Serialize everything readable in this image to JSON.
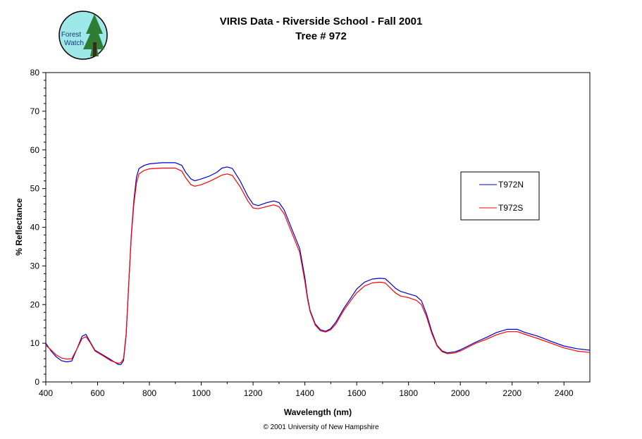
{
  "chart_data": {
    "type": "line",
    "title": "VIRIS Data - Riverside School - Fall 2001",
    "subtitle": "Tree # 972",
    "xlabel": "Wavelength (nm)",
    "ylabel": "% Reflectance",
    "xlim": [
      400,
      2500
    ],
    "ylim": [
      0,
      80
    ],
    "xticks": [
      400,
      600,
      800,
      1000,
      1200,
      1400,
      1600,
      1800,
      2000,
      2200,
      2400
    ],
    "yticks": [
      0,
      10,
      20,
      30,
      40,
      50,
      60,
      70,
      80
    ],
    "grid": false,
    "legend_position": "right",
    "series": [
      {
        "name": "T972N",
        "color": "#0000cc",
        "points": [
          [
            400,
            10
          ],
          [
            420,
            8
          ],
          [
            440,
            6.5
          ],
          [
            460,
            5.5
          ],
          [
            480,
            5.2
          ],
          [
            500,
            5.4
          ],
          [
            520,
            8.5
          ],
          [
            540,
            11.8
          ],
          [
            555,
            12.3
          ],
          [
            570,
            10.5
          ],
          [
            590,
            8.2
          ],
          [
            620,
            7
          ],
          [
            650,
            5.8
          ],
          [
            680,
            4.5
          ],
          [
            690,
            4.5
          ],
          [
            700,
            5.5
          ],
          [
            710,
            12
          ],
          [
            720,
            25
          ],
          [
            730,
            38
          ],
          [
            740,
            47
          ],
          [
            750,
            53
          ],
          [
            760,
            55.2
          ],
          [
            780,
            56
          ],
          [
            800,
            56.4
          ],
          [
            850,
            56.7
          ],
          [
            900,
            56.7
          ],
          [
            925,
            56
          ],
          [
            940,
            54.2
          ],
          [
            960,
            52.5
          ],
          [
            975,
            52
          ],
          [
            1000,
            52.5
          ],
          [
            1030,
            53.2
          ],
          [
            1060,
            54.2
          ],
          [
            1080,
            55.3
          ],
          [
            1100,
            55.6
          ],
          [
            1120,
            55.2
          ],
          [
            1150,
            52
          ],
          [
            1180,
            48
          ],
          [
            1200,
            46
          ],
          [
            1220,
            45.6
          ],
          [
            1250,
            46.3
          ],
          [
            1280,
            46.8
          ],
          [
            1300,
            46.4
          ],
          [
            1320,
            44.5
          ],
          [
            1350,
            39.5
          ],
          [
            1380,
            34.5
          ],
          [
            1400,
            27
          ],
          [
            1410,
            22
          ],
          [
            1420,
            18.5
          ],
          [
            1440,
            15
          ],
          [
            1460,
            13.5
          ],
          [
            1480,
            13.1
          ],
          [
            1500,
            13.8
          ],
          [
            1520,
            15.5
          ],
          [
            1550,
            19
          ],
          [
            1580,
            22
          ],
          [
            1600,
            24
          ],
          [
            1630,
            25.8
          ],
          [
            1660,
            26.6
          ],
          [
            1690,
            26.8
          ],
          [
            1710,
            26.7
          ],
          [
            1730,
            25.5
          ],
          [
            1750,
            24.2
          ],
          [
            1770,
            23.4
          ],
          [
            1800,
            22.8
          ],
          [
            1830,
            22.2
          ],
          [
            1850,
            21
          ],
          [
            1870,
            17.5
          ],
          [
            1890,
            13
          ],
          [
            1910,
            9.5
          ],
          [
            1930,
            8
          ],
          [
            1950,
            7.5
          ],
          [
            1980,
            7.8
          ],
          [
            2000,
            8.3
          ],
          [
            2030,
            9.3
          ],
          [
            2060,
            10.3
          ],
          [
            2100,
            11.5
          ],
          [
            2140,
            12.8
          ],
          [
            2180,
            13.6
          ],
          [
            2220,
            13.6
          ],
          [
            2250,
            12.8
          ],
          [
            2300,
            11.8
          ],
          [
            2350,
            10.5
          ],
          [
            2400,
            9.3
          ],
          [
            2450,
            8.6
          ],
          [
            2500,
            8.2
          ]
        ]
      },
      {
        "name": "T972S",
        "color": "#ff0000",
        "points": [
          [
            400,
            9.5
          ],
          [
            420,
            8.3
          ],
          [
            440,
            7
          ],
          [
            460,
            6.2
          ],
          [
            480,
            5.9
          ],
          [
            500,
            6
          ],
          [
            520,
            8.5
          ],
          [
            540,
            11.2
          ],
          [
            555,
            11.7
          ],
          [
            570,
            10.3
          ],
          [
            590,
            8
          ],
          [
            620,
            6.8
          ],
          [
            650,
            5.5
          ],
          [
            680,
            4.8
          ],
          [
            690,
            5
          ],
          [
            700,
            6
          ],
          [
            710,
            12.5
          ],
          [
            720,
            25
          ],
          [
            730,
            37.5
          ],
          [
            740,
            46
          ],
          [
            750,
            51.5
          ],
          [
            760,
            53.8
          ],
          [
            780,
            54.7
          ],
          [
            800,
            55.1
          ],
          [
            850,
            55.3
          ],
          [
            900,
            55.3
          ],
          [
            925,
            54.5
          ],
          [
            940,
            52.8
          ],
          [
            960,
            51
          ],
          [
            975,
            50.6
          ],
          [
            1000,
            51
          ],
          [
            1030,
            51.8
          ],
          [
            1060,
            52.8
          ],
          [
            1080,
            53.5
          ],
          [
            1100,
            53.8
          ],
          [
            1120,
            53.4
          ],
          [
            1150,
            50.5
          ],
          [
            1180,
            46.8
          ],
          [
            1200,
            45
          ],
          [
            1220,
            44.8
          ],
          [
            1250,
            45.3
          ],
          [
            1280,
            45.8
          ],
          [
            1300,
            45.3
          ],
          [
            1320,
            43.5
          ],
          [
            1350,
            38.5
          ],
          [
            1380,
            33.5
          ],
          [
            1400,
            26
          ],
          [
            1410,
            21.5
          ],
          [
            1420,
            18.2
          ],
          [
            1440,
            14.7
          ],
          [
            1460,
            13.2
          ],
          [
            1480,
            12.9
          ],
          [
            1500,
            13.5
          ],
          [
            1520,
            15
          ],
          [
            1550,
            18.5
          ],
          [
            1580,
            21.3
          ],
          [
            1600,
            23
          ],
          [
            1630,
            24.8
          ],
          [
            1660,
            25.6
          ],
          [
            1690,
            25.8
          ],
          [
            1710,
            25.6
          ],
          [
            1730,
            24.3
          ],
          [
            1750,
            23
          ],
          [
            1770,
            22.2
          ],
          [
            1800,
            21.8
          ],
          [
            1830,
            21.1
          ],
          [
            1850,
            20
          ],
          [
            1870,
            16.8
          ],
          [
            1890,
            12.5
          ],
          [
            1910,
            9.3
          ],
          [
            1930,
            7.8
          ],
          [
            1950,
            7.3
          ],
          [
            1980,
            7.5
          ],
          [
            2000,
            8
          ],
          [
            2030,
            9
          ],
          [
            2060,
            10
          ],
          [
            2100,
            11
          ],
          [
            2140,
            12.2
          ],
          [
            2180,
            13
          ],
          [
            2220,
            13
          ],
          [
            2250,
            12.3
          ],
          [
            2300,
            11.2
          ],
          [
            2350,
            10
          ],
          [
            2400,
            8.8
          ],
          [
            2450,
            8
          ],
          [
            2500,
            7.6
          ]
        ]
      }
    ]
  },
  "logo": {
    "line1": "Forest",
    "line2": "Watch",
    "circle_color": "#9fe8ea",
    "tree_color": "#2e7d32"
  },
  "footer": "© 2001 University of New Hampshire"
}
